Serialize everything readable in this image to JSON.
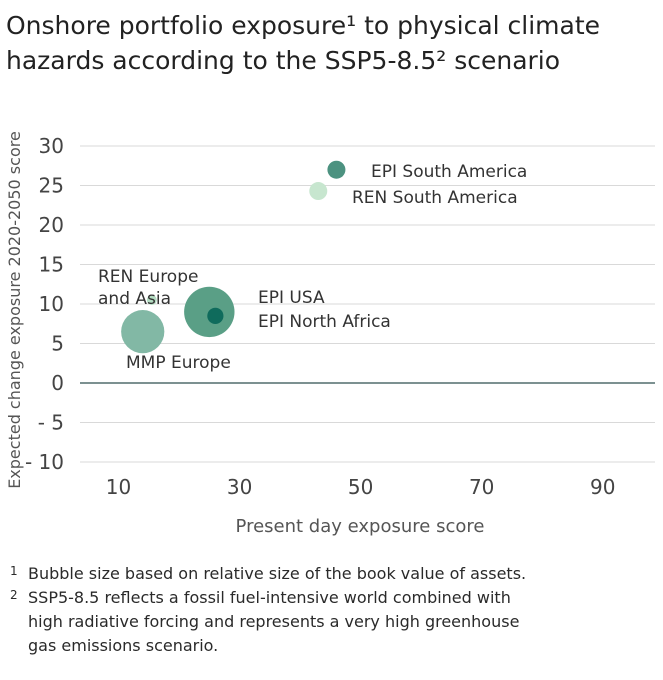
{
  "title_lines": [
    "Onshore portfolio exposure¹ to physical climate",
    "hazards according to the SSP5-8.5² scenario"
  ],
  "chart_data": {
    "type": "scatter",
    "title": "Onshore portfolio exposure¹ to physical climate hazards according to the SSP5-8.5² scenario",
    "xlabel": "Present day exposure score",
    "ylabel": "Expected change exposure 2020-2050 score",
    "xlim": [
      0,
      95
    ],
    "ylim": [
      -10,
      30
    ],
    "x_ticks": [
      10,
      30,
      50,
      70,
      90
    ],
    "y_ticks": [
      30,
      25,
      20,
      15,
      10,
      5,
      0,
      -5,
      -10
    ],
    "y_tick_labels": [
      "30",
      "25",
      "20",
      "15",
      "10",
      "5",
      "0",
      "- 5",
      "- 10"
    ],
    "grid": true,
    "zero_line": true,
    "points": [
      {
        "label": "MMP Europe",
        "x": 14,
        "y": 6.5,
        "size": 2.4,
        "color": "#82b8a5"
      },
      {
        "label": "EPI USA",
        "x": 25,
        "y": 9,
        "size": 2.8,
        "color": "#5a9f86"
      },
      {
        "label": "EPI North Africa",
        "x": 26,
        "y": 8.5,
        "size": 0.9,
        "color": "#0f6b5c"
      },
      {
        "label": "REN Europe and Asia",
        "x": 15.5,
        "y": 10.5,
        "size": 0.55,
        "color": "#b4dcc2"
      },
      {
        "label": "EPI South America",
        "x": 46,
        "y": 27,
        "size": 1.0,
        "color": "#4c9280"
      },
      {
        "label": "REN South America",
        "x": 43,
        "y": 24.3,
        "size": 1.0,
        "color": "#c7e6cf"
      }
    ]
  },
  "footnotes": [
    {
      "mark": "1",
      "lines": [
        "Bubble size based on relative size of the book value of assets."
      ]
    },
    {
      "mark": "2",
      "lines": [
        "SSP5-8.5 reflects a fossil fuel-intensive world combined with",
        "high radiative forcing and represents a very high greenhouse",
        "gas emissions scenario."
      ]
    }
  ]
}
